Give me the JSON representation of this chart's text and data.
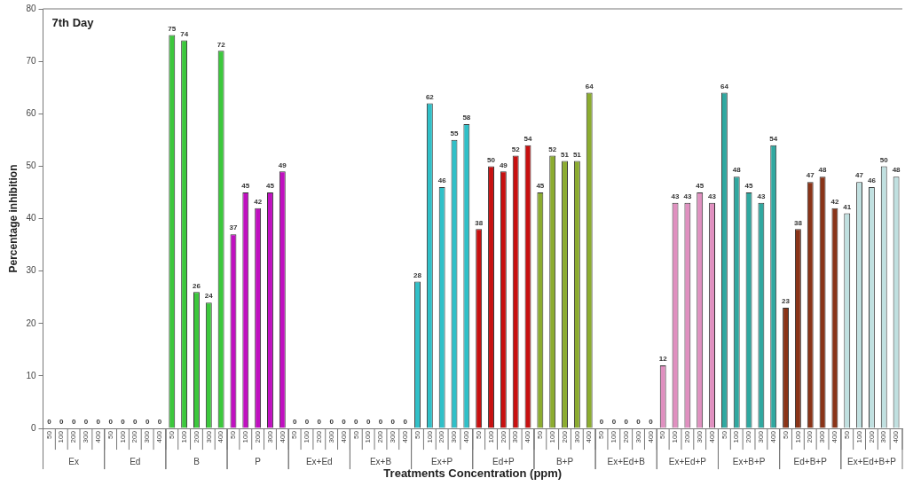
{
  "chart_data": {
    "type": "bar",
    "title": "7th Day",
    "xlabel": "Treatments Concentration (ppm)",
    "ylabel": "Percentage inhibition",
    "categories": [
      "50",
      "100",
      "200",
      "300",
      "400",
      "50",
      "100",
      "200",
      "300",
      "400",
      "50",
      "100",
      "200",
      "300",
      "400",
      "50",
      "100",
      "200",
      "300",
      "400",
      "50",
      "100",
      "200",
      "300",
      "400",
      "50",
      "100",
      "200",
      "300",
      "400",
      "50",
      "100",
      "200",
      "300",
      "400",
      "50",
      "100",
      "200",
      "300",
      "400",
      "50",
      "100",
      "200",
      "300",
      "400",
      "50",
      "100",
      "200",
      "300",
      "400",
      "50",
      "100",
      "200",
      "300",
      "400",
      "50",
      "100",
      "200",
      "300",
      "400",
      "50",
      "100",
      "200",
      "300",
      "400",
      "50",
      "100",
      "200",
      "300",
      "400"
    ],
    "series": [
      {
        "name": "Ex",
        "values": [
          0,
          0,
          0,
          0,
          0,
          null,
          null,
          null,
          null,
          null,
          null,
          null,
          null,
          null,
          null,
          null,
          null,
          null,
          null,
          null,
          null,
          null,
          null,
          null,
          null,
          null,
          null,
          null,
          null,
          null,
          null,
          null,
          null,
          null,
          null,
          null,
          null,
          null,
          null,
          null,
          null,
          null,
          null,
          null,
          null,
          null,
          null,
          null,
          null,
          null,
          null,
          null,
          null,
          null,
          null,
          null,
          null,
          null,
          null,
          null,
          null,
          null,
          null,
          null,
          null,
          null,
          null,
          null,
          null,
          null
        ]
      },
      {
        "name": "Ed",
        "values": [
          null,
          null,
          null,
          null,
          null,
          0,
          0,
          0,
          0,
          0,
          null,
          null,
          null,
          null,
          null,
          null,
          null,
          null,
          null,
          null,
          null,
          null,
          null,
          null,
          null,
          null,
          null,
          null,
          null,
          null,
          null,
          null,
          null,
          null,
          null,
          null,
          null,
          null,
          null,
          null,
          null,
          null,
          null,
          null,
          null,
          null,
          null,
          null,
          null,
          null,
          null,
          null,
          null,
          null,
          null,
          null,
          null,
          null,
          null,
          null,
          null,
          null,
          null,
          null,
          null,
          null,
          null,
          null,
          null,
          null
        ]
      },
      {
        "name": "B",
        "color": "#3cc83c",
        "values": [
          null,
          null,
          null,
          null,
          null,
          null,
          null,
          null,
          null,
          null,
          75,
          74,
          26,
          24,
          72,
          null,
          null,
          null,
          null,
          null,
          null,
          null,
          null,
          null,
          null,
          null,
          null,
          null,
          null,
          null,
          null,
          null,
          null,
          null,
          null,
          null,
          null,
          null,
          null,
          null,
          null,
          null,
          null,
          null,
          null,
          null,
          null,
          null,
          null,
          null,
          null,
          null,
          null,
          null,
          null,
          null,
          null,
          null,
          null,
          null,
          null,
          null,
          null,
          null,
          null,
          null,
          null,
          null,
          null,
          null
        ]
      },
      {
        "name": "P",
        "color": "#c010c0",
        "values": [
          null,
          null,
          null,
          null,
          null,
          null,
          null,
          null,
          null,
          null,
          null,
          null,
          null,
          null,
          null,
          37,
          45,
          42,
          45,
          49,
          null,
          null,
          null,
          null,
          null,
          null,
          null,
          null,
          null,
          null,
          null,
          null,
          null,
          null,
          null,
          null,
          null,
          null,
          null,
          null,
          null,
          null,
          null,
          null,
          null,
          null,
          null,
          null,
          null,
          null,
          null,
          null,
          null,
          null,
          null,
          null,
          null,
          null,
          null,
          null,
          null,
          null,
          null,
          null,
          null,
          null,
          null,
          null,
          null,
          null
        ]
      },
      {
        "name": "Ex+Ed",
        "values": [
          null,
          null,
          null,
          null,
          null,
          null,
          null,
          null,
          null,
          null,
          null,
          null,
          null,
          null,
          null,
          null,
          null,
          null,
          null,
          null,
          0,
          0,
          0,
          0,
          0,
          null,
          null,
          null,
          null,
          null,
          null,
          null,
          null,
          null,
          null,
          null,
          null,
          null,
          null,
          null,
          null,
          null,
          null,
          null,
          null,
          null,
          null,
          null,
          null,
          null,
          null,
          null,
          null,
          null,
          null,
          null,
          null,
          null,
          null,
          null,
          null,
          null,
          null,
          null,
          null,
          null,
          null,
          null,
          null,
          null
        ]
      },
      {
        "name": "Ex+B",
        "values": [
          null,
          null,
          null,
          null,
          null,
          null,
          null,
          null,
          null,
          null,
          null,
          null,
          null,
          null,
          null,
          null,
          null,
          null,
          null,
          null,
          null,
          null,
          null,
          null,
          null,
          0,
          0,
          0,
          0,
          0,
          null,
          null,
          null,
          null,
          null,
          null,
          null,
          null,
          null,
          null,
          null,
          null,
          null,
          null,
          null,
          null,
          null,
          null,
          null,
          null,
          null,
          null,
          null,
          null,
          null,
          null,
          null,
          null,
          null,
          null,
          null,
          null,
          null,
          null,
          null,
          null,
          null,
          null,
          null,
          null
        ]
      },
      {
        "name": "Ex+P",
        "color": "#30c0c8",
        "values": [
          null,
          null,
          null,
          null,
          null,
          null,
          null,
          null,
          null,
          null,
          null,
          null,
          null,
          null,
          null,
          null,
          null,
          null,
          null,
          null,
          null,
          null,
          null,
          null,
          null,
          null,
          null,
          null,
          null,
          null,
          28,
          62,
          46,
          55,
          58,
          null,
          null,
          null,
          null,
          null,
          null,
          null,
          null,
          null,
          null,
          null,
          null,
          null,
          null,
          null,
          null,
          null,
          null,
          null,
          null,
          null,
          null,
          null,
          null,
          null,
          null,
          null,
          null,
          null,
          null,
          null,
          null,
          null,
          null,
          null
        ]
      },
      {
        "name": "Ed+P",
        "color": "#c81010",
        "values": [
          null,
          null,
          null,
          null,
          null,
          null,
          null,
          null,
          null,
          null,
          null,
          null,
          null,
          null,
          null,
          null,
          null,
          null,
          null,
          null,
          null,
          null,
          null,
          null,
          null,
          null,
          null,
          null,
          null,
          null,
          null,
          null,
          null,
          null,
          null,
          38,
          50,
          49,
          52,
          54,
          null,
          null,
          null,
          null,
          null,
          null,
          null,
          null,
          null,
          null,
          null,
          null,
          null,
          null,
          null,
          null,
          null,
          null,
          null,
          null,
          null,
          null,
          null,
          null,
          null,
          null,
          null,
          null,
          null,
          null
        ]
      },
      {
        "name": "B+P",
        "color": "#8cac30",
        "values": [
          null,
          null,
          null,
          null,
          null,
          null,
          null,
          null,
          null,
          null,
          null,
          null,
          null,
          null,
          null,
          null,
          null,
          null,
          null,
          null,
          null,
          null,
          null,
          null,
          null,
          null,
          null,
          null,
          null,
          null,
          null,
          null,
          null,
          null,
          null,
          null,
          null,
          null,
          null,
          null,
          45,
          52,
          51,
          51,
          64,
          null,
          null,
          null,
          null,
          null,
          null,
          null,
          null,
          null,
          null,
          null,
          null,
          null,
          null,
          null,
          null,
          null,
          null,
          null,
          null,
          null,
          null,
          null,
          null,
          null
        ]
      },
      {
        "name": "Ex+Ed+B",
        "values": [
          null,
          null,
          null,
          null,
          null,
          null,
          null,
          null,
          null,
          null,
          null,
          null,
          null,
          null,
          null,
          null,
          null,
          null,
          null,
          null,
          null,
          null,
          null,
          null,
          null,
          null,
          null,
          null,
          null,
          null,
          null,
          null,
          null,
          null,
          null,
          null,
          null,
          null,
          null,
          null,
          null,
          null,
          null,
          null,
          null,
          0,
          0,
          0,
          0,
          0,
          null,
          null,
          null,
          null,
          null,
          null,
          null,
          null,
          null,
          null,
          null,
          null,
          null,
          null,
          null,
          null,
          null,
          null,
          null,
          null
        ]
      },
      {
        "name": "Ex+Ed+P",
        "color": "#e090c0",
        "values": [
          null,
          null,
          null,
          null,
          null,
          null,
          null,
          null,
          null,
          null,
          null,
          null,
          null,
          null,
          null,
          null,
          null,
          null,
          null,
          null,
          null,
          null,
          null,
          null,
          null,
          null,
          null,
          null,
          null,
          null,
          null,
          null,
          null,
          null,
          null,
          null,
          null,
          null,
          null,
          null,
          null,
          null,
          null,
          null,
          null,
          null,
          null,
          null,
          null,
          null,
          12,
          43,
          43,
          45,
          43,
          null,
          null,
          null,
          null,
          null,
          null,
          null,
          null,
          null,
          null,
          null,
          null,
          null,
          null,
          null
        ]
      },
      {
        "name": "Ex+B+P",
        "color": "#30a8a0",
        "values": [
          null,
          null,
          null,
          null,
          null,
          null,
          null,
          null,
          null,
          null,
          null,
          null,
          null,
          null,
          null,
          null,
          null,
          null,
          null,
          null,
          null,
          null,
          null,
          null,
          null,
          null,
          null,
          null,
          null,
          null,
          null,
          null,
          null,
          null,
          null,
          null,
          null,
          null,
          null,
          null,
          null,
          null,
          null,
          null,
          null,
          null,
          null,
          null,
          null,
          null,
          null,
          null,
          null,
          null,
          null,
          64,
          48,
          45,
          43,
          54,
          null,
          null,
          null,
          null,
          null,
          null,
          null,
          null,
          null,
          null
        ]
      },
      {
        "name": "Ed+B+P",
        "color": "#8a3418",
        "values": [
          null,
          null,
          null,
          null,
          null,
          null,
          null,
          null,
          null,
          null,
          null,
          null,
          null,
          null,
          null,
          null,
          null,
          null,
          null,
          null,
          null,
          null,
          null,
          null,
          null,
          null,
          null,
          null,
          null,
          null,
          null,
          null,
          null,
          null,
          null,
          null,
          null,
          null,
          null,
          null,
          null,
          null,
          null,
          null,
          null,
          null,
          null,
          null,
          null,
          null,
          null,
          null,
          null,
          null,
          null,
          null,
          null,
          null,
          null,
          null,
          23,
          38,
          47,
          48,
          42,
          null,
          null,
          null,
          null,
          null
        ]
      },
      {
        "name": "Ex+Ed+B+P",
        "color": "#c0e0e0",
        "values": [
          null,
          null,
          null,
          null,
          null,
          null,
          null,
          null,
          null,
          null,
          null,
          null,
          null,
          null,
          null,
          null,
          null,
          null,
          null,
          null,
          null,
          null,
          null,
          null,
          null,
          null,
          null,
          null,
          null,
          null,
          null,
          null,
          null,
          null,
          null,
          null,
          null,
          null,
          null,
          null,
          null,
          null,
          null,
          null,
          null,
          null,
          null,
          null,
          null,
          null,
          null,
          null,
          null,
          null,
          null,
          null,
          null,
          null,
          null,
          null,
          null,
          null,
          null,
          null,
          null,
          41,
          47,
          46,
          50,
          48
        ]
      }
    ],
    "ylim": [
      0,
      80
    ],
    "yticks": [
      0,
      10,
      20,
      30,
      40,
      50,
      60,
      70,
      80
    ],
    "grid": false,
    "legend": "bottom",
    "data_labels": true
  }
}
